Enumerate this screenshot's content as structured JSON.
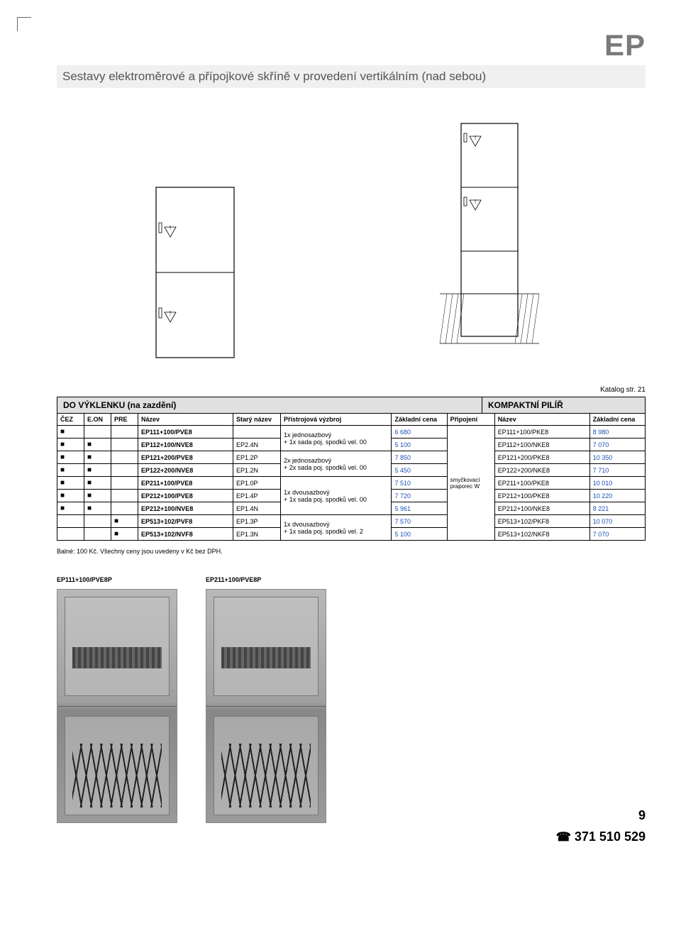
{
  "brand": "EP",
  "title": "Sestavy elektroměrové a přípojkové skříně v provedení vertikálním (nad sebou)",
  "catalog_ref": "Katalog str. 21",
  "section_left": "DO VÝKLENKU (na zazdění)",
  "section_right": "KOMPAKTNÍ PILÍŘ",
  "columns": {
    "cez": "ČEZ",
    "eon": "E.ON",
    "pre": "PRE",
    "nazev": "Název",
    "stary": "Starý název",
    "vyz": "Přístrojová výzbroj",
    "cena": "Základní cena",
    "prip": "Připojení",
    "nazev2": "Název",
    "cena2": "Základní cena"
  },
  "equip": {
    "e1a": "1x jednosazbový",
    "e1b": "+ 1x sada poj. spodků vel. 00",
    "e2a": "2x jednosazbový",
    "e2b": "+ 2x sada poj. spodků vel. 00",
    "e3a": "1x dvousazbový",
    "e3b": "+ 1x sada poj. spodků vel. 00",
    "e4a": "1x dvousazbový",
    "e4b": "+ 1x sada poj. spodků vel. 2"
  },
  "connection": "smyčkovací\npraporec W",
  "rows": [
    {
      "cez": "■",
      "eon": "",
      "pre": "",
      "name": "EP111+100/PVE8",
      "old": "",
      "price": "6 680",
      "name2": "EP111+100/PKE8",
      "price2": "8 980"
    },
    {
      "cez": "■",
      "eon": "■",
      "pre": "",
      "name": "EP112+100/NVE8",
      "old": "EP2.4N",
      "price": "5 100",
      "name2": "EP112+100/NKE8",
      "price2": "7 070"
    },
    {
      "cez": "■",
      "eon": "■",
      "pre": "",
      "name": "EP121+200/PVE8",
      "old": "EP1.2P",
      "price": "7 850",
      "name2": "EP121+200/PKE8",
      "price2": "10 350"
    },
    {
      "cez": "■",
      "eon": "■",
      "pre": "",
      "name": "EP122+200/NVE8",
      "old": "EP1.2N",
      "price": "5 450",
      "name2": "EP122+200/NKE8",
      "price2": "7 710"
    },
    {
      "cez": "■",
      "eon": "■",
      "pre": "",
      "name": "EP211+100/PVE8",
      "old": "EP1.0P",
      "price": "7 510",
      "name2": "EP211+100/PKE8",
      "price2": "10 010"
    },
    {
      "cez": "■",
      "eon": "■",
      "pre": "",
      "name": "EP212+100/PVE8",
      "old": "EP1.4P",
      "price": "7 720",
      "name2": "EP212+100/PKE8",
      "price2": "10 220"
    },
    {
      "cez": "■",
      "eon": "■",
      "pre": "",
      "name": "EP212+100/NVE8",
      "old": "EP1.4N",
      "price": "5 961",
      "name2": "EP212+100/NKE8",
      "price2": "8 221"
    },
    {
      "cez": "",
      "eon": "",
      "pre": "■",
      "name": "EP513+102/PVF8",
      "old": "EP1.3P",
      "price": "7 570",
      "name2": "EP513+102/PKF8",
      "price2": "10 070"
    },
    {
      "cez": "",
      "eon": "",
      "pre": "■",
      "name": "EP513+102/NVF8",
      "old": "EP1.3N",
      "price": "5 100",
      "name2": "EP513+102/NKF8",
      "price2": "7 070"
    }
  ],
  "note": "Balné: 100 Kč.   Všechny ceny jsou uvedeny v Kč bez DPH.",
  "photos": [
    {
      "label": "EP111+100/PVE8P"
    },
    {
      "label": "EP211+100/PVE8P"
    }
  ],
  "page_number": "9",
  "phone": "371 510 529",
  "colors": {
    "price": "#1a4fb8",
    "brand": "#7a7a7a",
    "titlebg": "#f0f0f0",
    "sectionbg": "#e0e0e0"
  }
}
